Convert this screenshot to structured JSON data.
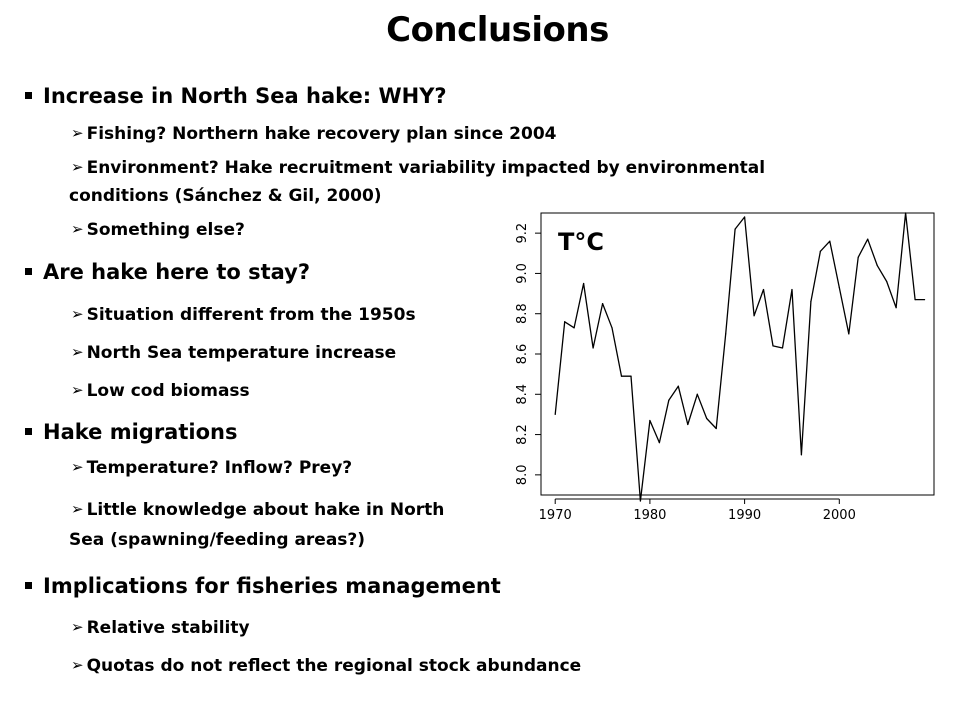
{
  "title": "Conclusions",
  "sections": [
    {
      "heading": "Increase in North Sea hake: WHY?",
      "items": [
        "Fishing? Northern hake recovery plan since 2004",
        "Environment? Hake recruitment variability impacted by environmental",
        "conditions (Sánchez & Gil, 2000)",
        "Something else?"
      ]
    },
    {
      "heading": "Are hake here to stay?",
      "items": [
        "Situation different from the 1950s",
        "North Sea temperature increase",
        "Low cod biomass"
      ]
    },
    {
      "heading": "Hake migrations",
      "items": [
        "Temperature? Inflow? Prey?",
        "Little knowledge about hake in North",
        "Sea (spawning/feeding areas?)"
      ]
    },
    {
      "heading": "Implications for fisheries management",
      "items": [
        "Relative stability",
        "Quotas do not reflect the regional stock abundance"
      ]
    }
  ],
  "chart_data": {
    "type": "line",
    "annotation": "T°C",
    "x_ticks": [
      1970,
      1980,
      1990,
      2000
    ],
    "y_ticks": [
      "8.0",
      "8.2",
      "8.4",
      "8.6",
      "8.8",
      "9.0",
      "9.2"
    ],
    "xlim": [
      1968.5,
      2010
    ],
    "ylim": [
      7.9,
      9.3
    ],
    "grid": false,
    "legend": "none",
    "line_color": "#000000",
    "x": [
      1970,
      1971,
      1972,
      1973,
      1974,
      1975,
      1976,
      1977,
      1978,
      1979,
      1980,
      1981,
      1982,
      1983,
      1984,
      1985,
      1986,
      1987,
      1988,
      1989,
      1990,
      1991,
      1992,
      1993,
      1994,
      1995,
      1996,
      1997,
      1998,
      1999,
      2000,
      2001,
      2002,
      2003,
      2004,
      2005,
      2006,
      2007,
      2008,
      2009
    ],
    "values": [
      8.3,
      8.76,
      8.73,
      8.95,
      8.63,
      8.85,
      8.73,
      8.49,
      8.49,
      7.87,
      8.27,
      8.16,
      8.37,
      8.44,
      8.25,
      8.4,
      8.28,
      8.23,
      8.7,
      9.22,
      9.28,
      8.79,
      8.92,
      8.64,
      8.63,
      8.92,
      8.1,
      8.86,
      9.11,
      9.16,
      8.93,
      8.7,
      9.08,
      9.17,
      9.04,
      8.96,
      8.83,
      9.3,
      8.87,
      8.87
    ]
  }
}
